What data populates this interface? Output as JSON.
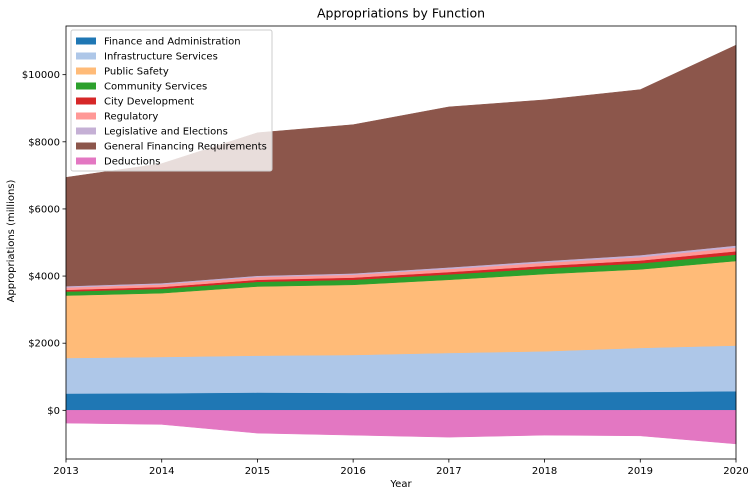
{
  "chart_data": {
    "type": "area",
    "stacked": true,
    "title": "Appropriations by Function",
    "xlabel": "Year",
    "ylabel": "Appropriations (millions)",
    "x": [
      2013,
      2014,
      2015,
      2016,
      2017,
      2018,
      2019,
      2020
    ],
    "xlim": [
      2013,
      2020
    ],
    "ylim": [
      -1450,
      11450
    ],
    "xticks": [
      "2013",
      "2014",
      "2015",
      "2016",
      "2017",
      "2018",
      "2019",
      "2020"
    ],
    "yticks": [
      {
        "value": 0,
        "label": "$0"
      },
      {
        "value": 2000,
        "label": "$2000"
      },
      {
        "value": 4000,
        "label": "$4000"
      },
      {
        "value": 6000,
        "label": "$6000"
      },
      {
        "value": 8000,
        "label": "$8000"
      },
      {
        "value": 10000,
        "label": "$10000"
      }
    ],
    "grid": false,
    "legend_position": "top-left",
    "series": [
      {
        "name": "Finance and Administration",
        "color": "#1f77b4",
        "values": [
          500,
          510,
          530,
          520,
          530,
          540,
          550,
          570
        ]
      },
      {
        "name": "Infrastructure Services",
        "color": "#aec7e8",
        "values": [
          1060,
          1080,
          1100,
          1130,
          1180,
          1220,
          1310,
          1360
        ]
      },
      {
        "name": "Public Safety",
        "color": "#ffbb78",
        "values": [
          1860,
          1900,
          2060,
          2090,
          2180,
          2300,
          2340,
          2520
        ]
      },
      {
        "name": "Community Services",
        "color": "#2ca02c",
        "values": [
          120,
          130,
          140,
          150,
          160,
          170,
          180,
          190
        ]
      },
      {
        "name": "City Development",
        "color": "#d62728",
        "values": [
          50,
          55,
          60,
          65,
          70,
          75,
          85,
          100
        ]
      },
      {
        "name": "Regulatory",
        "color": "#ff9896",
        "values": [
          70,
          75,
          80,
          85,
          90,
          95,
          100,
          110
        ]
      },
      {
        "name": "Legislative and Elections",
        "color": "#c5b0d5",
        "values": [
          40,
          40,
          40,
          40,
          50,
          50,
          60,
          60
        ]
      },
      {
        "name": "General Financing Requirements",
        "color": "#8c564b",
        "values": [
          3240,
          3560,
          4260,
          4430,
          4780,
          4800,
          4930,
          5970
        ]
      },
      {
        "name": "Deductions",
        "color": "#e377c2",
        "values": [
          -380,
          -420,
          -680,
          -740,
          -800,
          -740,
          -760,
          -1000
        ]
      }
    ]
  }
}
